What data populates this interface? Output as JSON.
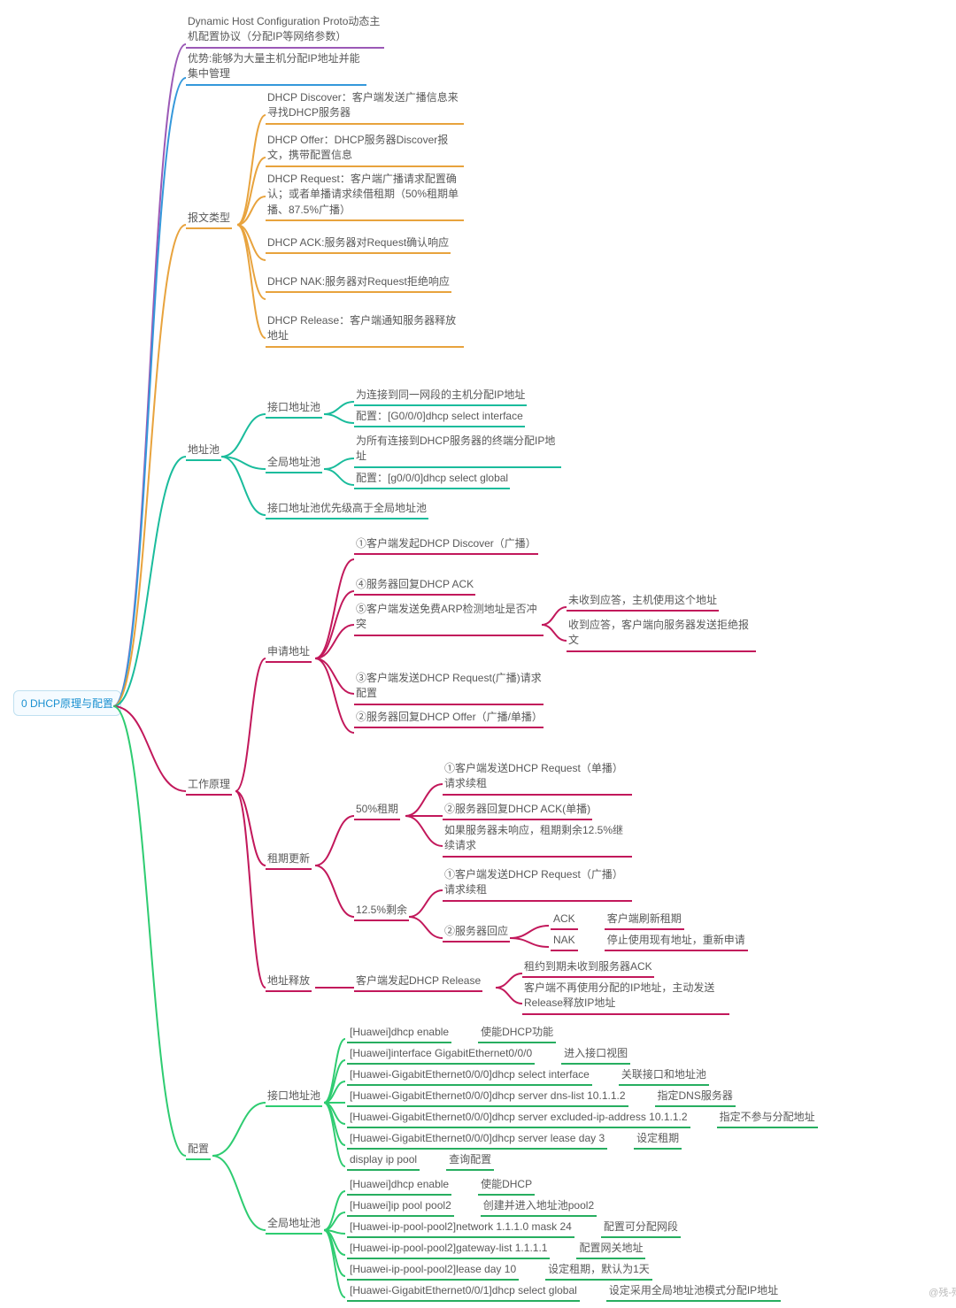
{
  "root": {
    "label": "0 DHCP原理与配置"
  },
  "colors": {
    "purple": "#9b59b6",
    "blue": "#3498db",
    "orange": "#e8a33d",
    "cyan": "#1abc9c",
    "magenta": "#c2185b",
    "green": "#2ecc71",
    "greendark": "#27ae60"
  },
  "intro": {
    "def": "Dynamic Host Configuration Proto动态主机配置协议（分配IP等网络参数）",
    "adv": "优势:能够为大量主机分配IP地址并能集中管理"
  },
  "msg": {
    "title": "报文类型",
    "items": [
      "DHCP Discover：客户端发送广播信息来寻找DHCP服务器",
      "DHCP Offer：DHCP服务器Discover报文，携带配置信息",
      "DHCP Request：客户端广播请求配置确认；或者单播请求续借租期（50%租期单播、87.5%广播）",
      "DHCP ACK:服务器对Request确认响应",
      "DHCP NAK:服务器对Request拒绝响应",
      "DHCP Release：客户端通知服务器释放地址"
    ]
  },
  "pool": {
    "title": "地址池",
    "if": {
      "title": "接口地址池",
      "a": "为连接到同一网段的主机分配IP地址",
      "b": "配置：[G0/0/0]dhcp select interface"
    },
    "gl": {
      "title": "全局地址池",
      "a": "为所有连接到DHCP服务器的终端分配IP地址",
      "b": "配置：[g0/0/0]dhcp select global"
    },
    "pri": "接口地址池优先级高于全局地址池"
  },
  "work": {
    "title": "工作原理",
    "apply": {
      "title": "申请地址",
      "s1": "①客户端发起DHCP Discover（广播）",
      "s4": "④服务器回复DHCP ACK",
      "s5": "⑤客户端发送免费ARP检测地址是否冲突",
      "s5a": "未收到应答，主机使用这个地址",
      "s5b": "收到应答，客户端向服务器发送拒绝报文",
      "s3": "③客户端发送DHCP Request(广播)请求配置",
      "s2": "②服务器回复DHCP Offer（广播/单播）"
    },
    "renew": {
      "title": "租期更新",
      "p50": {
        "title": "50%租期",
        "a": "①客户端发送DHCP Request（单播）请求续租",
        "b": "②服务器回复DHCP ACK(单播)",
        "c": "如果服务器未响应，租期剩余12.5%继续请求"
      },
      "p12": {
        "title": "12.5%剩余",
        "a": "①客户端发送DHCP Request（广播）请求续租",
        "b": "②服务器回应",
        "ack": {
          "l": "ACK",
          "r": "客户端刷新租期"
        },
        "nak": {
          "l": "NAK",
          "r": "停止使用现有地址，重新申请"
        }
      }
    },
    "rel": {
      "title": "地址释放",
      "a": "客户端发起DHCP Release",
      "b": "租约到期未收到服务器ACK",
      "c": "客户端不再使用分配的IP地址，主动发送Release释放IP地址"
    }
  },
  "cfg": {
    "title": "配置",
    "if": {
      "title": "接口地址池",
      "items": [
        {
          "l": "[Huawei]dhcp enable",
          "r": "使能DHCP功能"
        },
        {
          "l": "[Huawei]interface GigabitEthernet0/0/0",
          "r": "进入接口视图"
        },
        {
          "l": "[Huawei-GigabitEthernet0/0/0]dhcp select interface",
          "r": "关联接口和地址池"
        },
        {
          "l": "[Huawei-GigabitEthernet0/0/0]dhcp server dns-list 10.1.1.2",
          "r": "指定DNS服务器"
        },
        {
          "l": "[Huawei-GigabitEthernet0/0/0]dhcp server excluded-ip-address 10.1.1.2",
          "r": "指定不参与分配地址"
        },
        {
          "l": "[Huawei-GigabitEthernet0/0/0]dhcp server lease day 3",
          "r": "设定租期"
        },
        {
          "l": "display ip pool",
          "r": "查询配置"
        }
      ]
    },
    "gl": {
      "title": "全局地址池",
      "items": [
        {
          "l": "[Huawei]dhcp enable",
          "r": "使能DHCP"
        },
        {
          "l": "[Huawei]ip pool pool2",
          "r": "创建并进入地址池pool2"
        },
        {
          "l": "[Huawei-ip-pool-pool2]network 1.1.1.0 mask 24",
          "r": "配置可分配网段"
        },
        {
          "l": "[Huawei-ip-pool-pool2]gateway-list 1.1.1.1",
          "r": "配置网关地址"
        },
        {
          "l": "[Huawei-ip-pool-pool2]lease day 10",
          "r": "设定租期，默认为1天"
        },
        {
          "l": "[Huawei-GigabitEthernet0/0/1]dhcp select global",
          "r": "设定采用全局地址池模式分配IP地址"
        }
      ]
    }
  },
  "watermark": "@残-殇"
}
